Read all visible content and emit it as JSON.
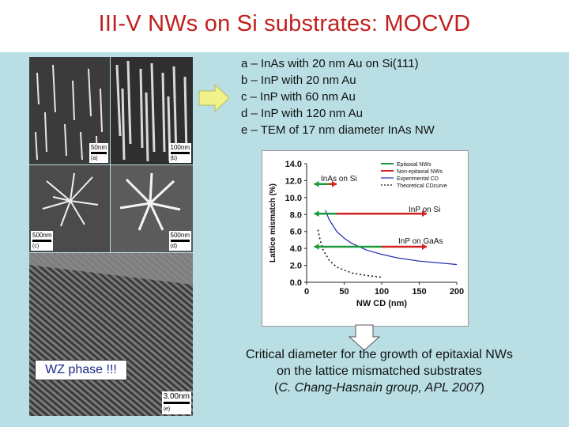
{
  "slide": {
    "title": "III-V NWs on Si substrates: MOCVD",
    "wz_label": "WZ phase !!!",
    "descriptions": [
      "a – InAs with 20 nm Au on Si(111)",
      "b – InP with 20 nm Au",
      "c – InP with 60 nm Au",
      "d – InP with 120 nm Au",
      "e – TEM of 17 nm diameter InAs NW"
    ],
    "caption_line1": "Critical diameter for the growth of epitaxial NWs",
    "caption_line2": "on the lattice mismatched substrates",
    "caption_cite_open": "(",
    "caption_cite": "C. Chang-Hasnain group, APL 2007",
    "caption_cite_close": ")",
    "colors": {
      "title": "#c0201e",
      "background": "#b9dfe5",
      "arrow_fill": "#f2f28a"
    }
  },
  "micrographs": [
    {
      "scale": "50nm",
      "letter": "(a)"
    },
    {
      "scale": "100nm",
      "letter": "(b)"
    },
    {
      "scale": "500nm",
      "letter": "(c)"
    },
    {
      "scale": "500nm",
      "letter": "(d)"
    },
    {
      "scale": "3.00nm",
      "letter": "(e)"
    }
  ],
  "chart_data": {
    "type": "scatter",
    "xlabel": "NW CD (nm)",
    "ylabel": "Lattice mismatch (%)",
    "xlim": [
      0,
      200
    ],
    "ylim": [
      0,
      14
    ],
    "x_ticks": [
      "0",
      "50",
      "100",
      "150",
      "200"
    ],
    "y_ticks": [
      "0.0",
      "2.0",
      "4.0",
      "6.0",
      "8.0",
      "10.0",
      "12.0",
      "14.0"
    ],
    "legend": [
      "Epitaxial NWs",
      "Non-epitaxial NWs",
      "Experimental CD",
      "Theoretical CDcurve"
    ],
    "annotations": [
      "InAs on Si",
      "InP on Si",
      "InP on GaAs"
    ],
    "series": [
      {
        "name": "Epitaxial NWs",
        "color": "#1a9a3a",
        "segments": [
          {
            "y": 11.6,
            "x0": 10,
            "x1": 30
          },
          {
            "y": 8.1,
            "x0": 10,
            "x1": 40
          },
          {
            "y": 4.2,
            "x0": 10,
            "x1": 100
          }
        ]
      },
      {
        "name": "Non-epitaxial NWs",
        "color": "#d42020",
        "segments": [
          {
            "y": 11.6,
            "x0": 30,
            "x1": 40
          },
          {
            "y": 8.1,
            "x0": 40,
            "x1": 160
          },
          {
            "y": 4.2,
            "x0": 100,
            "x1": 160
          }
        ]
      }
    ],
    "experimental_cd": {
      "color": "#1a2ab0",
      "x": [
        25,
        30,
        40,
        50,
        60,
        80,
        100,
        120,
        150,
        200
      ],
      "y": [
        8.5,
        7.4,
        6.0,
        5.2,
        4.6,
        3.8,
        3.3,
        2.9,
        2.5,
        2.1
      ]
    },
    "theoretical_cd": {
      "x": [
        15,
        18,
        22,
        30,
        40,
        60,
        80,
        100
      ],
      "y": [
        6.2,
        5.0,
        3.8,
        2.6,
        1.8,
        1.1,
        0.8,
        0.6
      ]
    }
  }
}
